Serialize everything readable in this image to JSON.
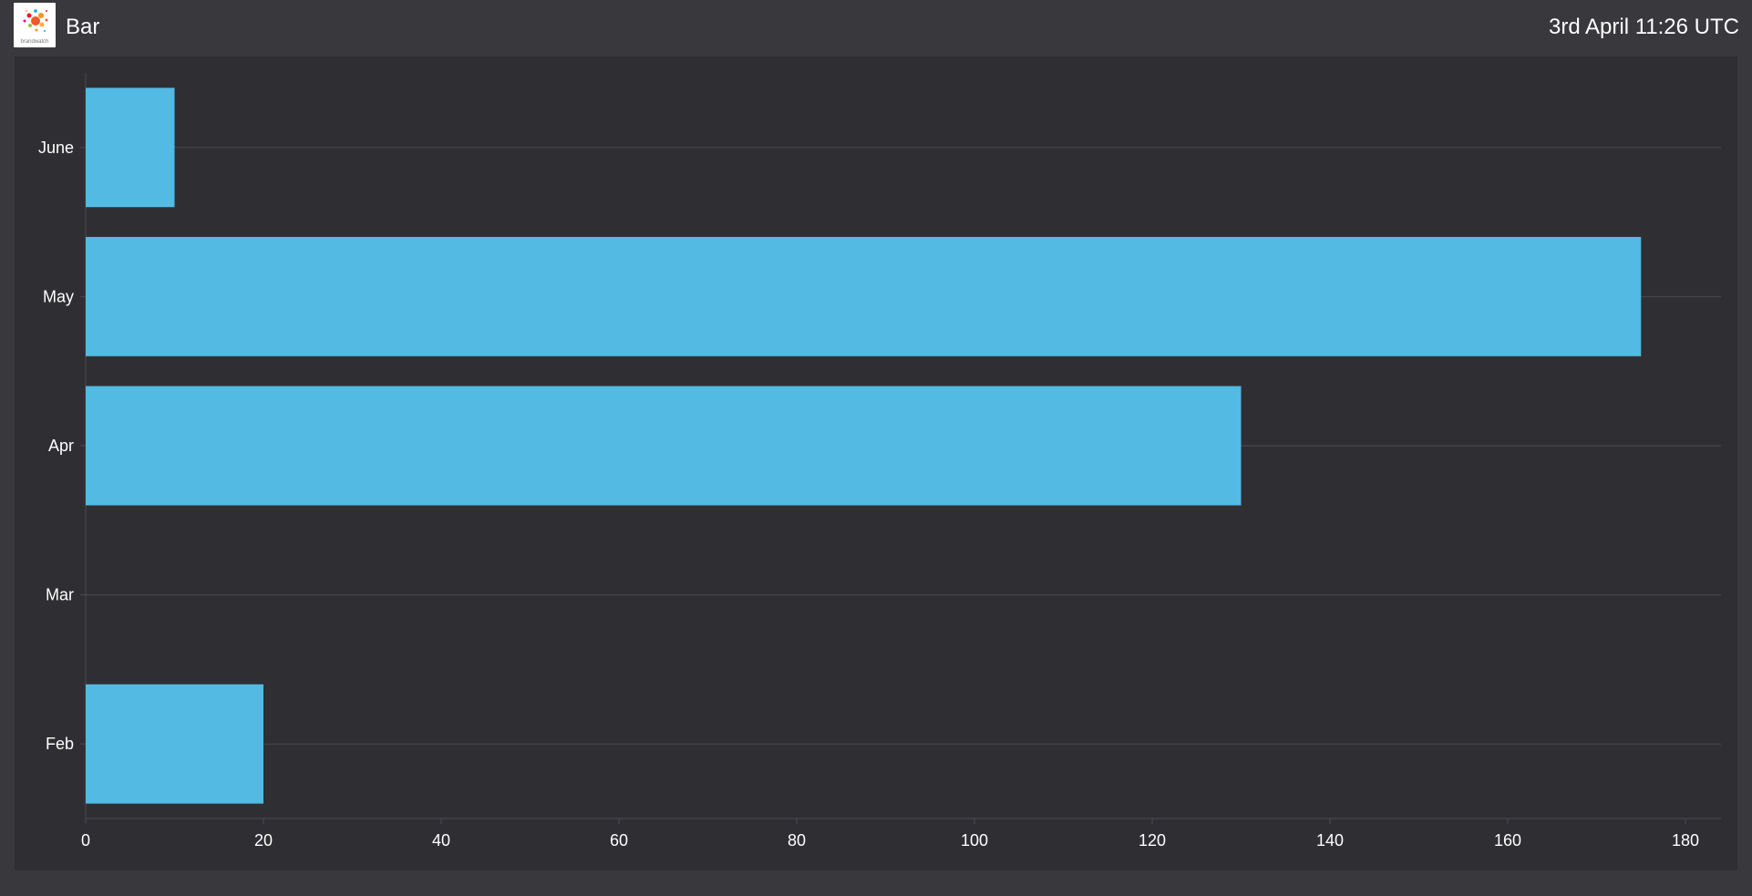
{
  "header": {
    "logo_text": "brandwatch",
    "title": "Bar",
    "timestamp": "3rd April 11:26 UTC"
  },
  "colors": {
    "background": "#38383d",
    "panel": "#2f2f33",
    "bar": "#52bae3",
    "grid": "#4a4a50",
    "text": "#ffffff"
  },
  "chart_data": {
    "type": "bar",
    "orientation": "horizontal",
    "categories": [
      "June",
      "May",
      "Apr",
      "Mar",
      "Feb"
    ],
    "values": [
      10,
      175,
      130,
      0,
      20
    ],
    "xlim": [
      0,
      184
    ],
    "x_ticks": [
      0,
      20,
      40,
      60,
      80,
      100,
      120,
      140,
      160,
      180
    ],
    "grid": "horizontal",
    "legend": "none"
  }
}
